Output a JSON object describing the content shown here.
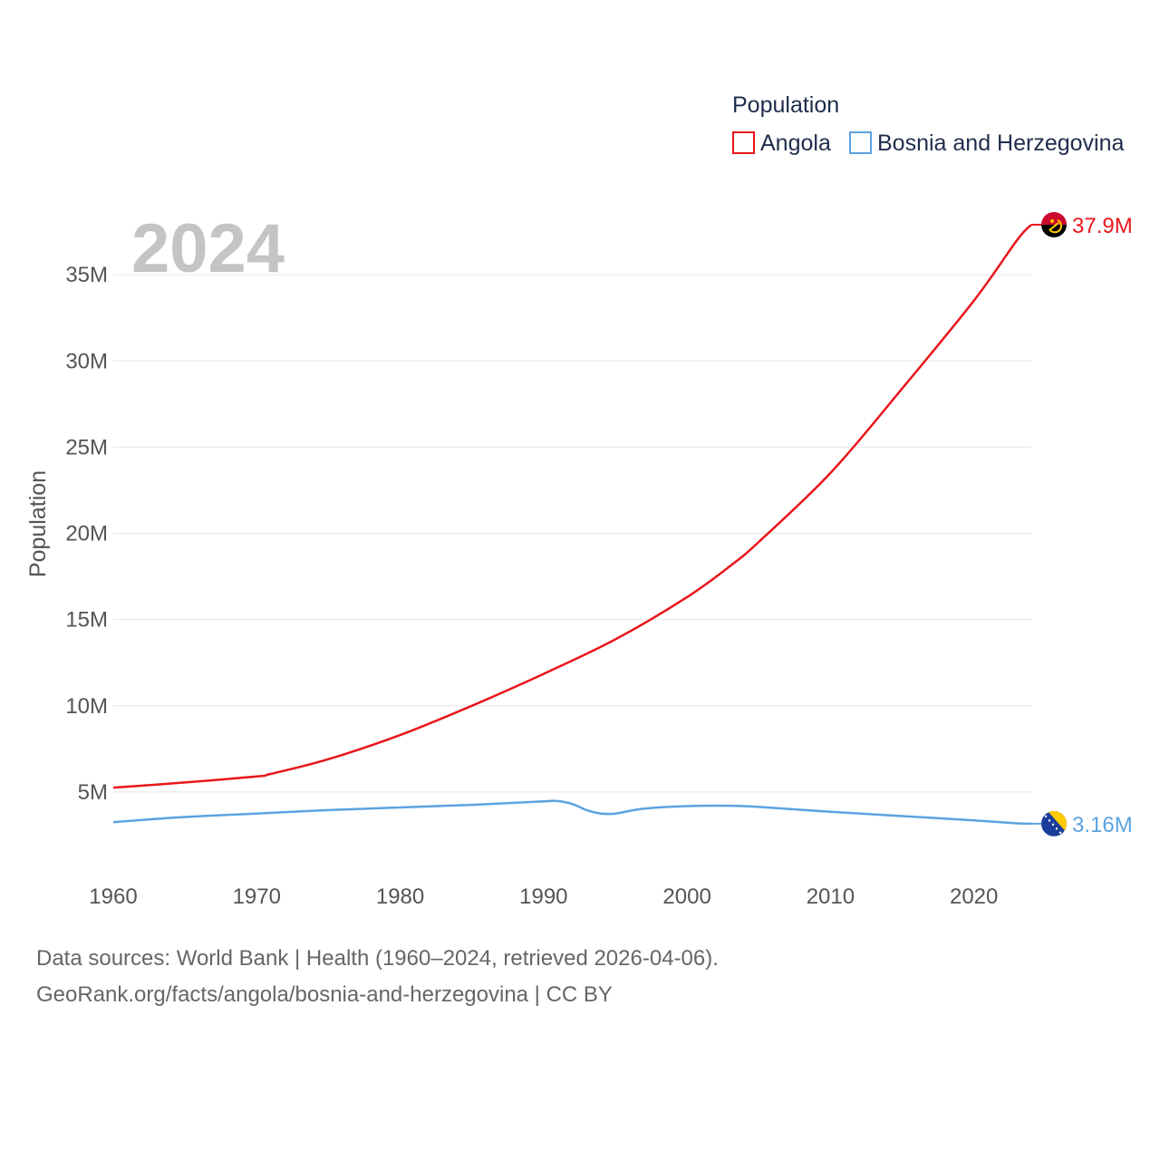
{
  "chart_data": {
    "type": "line",
    "year_label": "2024",
    "ylabel": "Population",
    "xlabel": "",
    "xlim": [
      1960,
      2024
    ],
    "ylim": [
      0,
      40000000
    ],
    "x_ticks": [
      1960,
      1970,
      1980,
      1990,
      2000,
      2010,
      2020
    ],
    "y_ticks": [
      {
        "value": 5000000,
        "label": "5M"
      },
      {
        "value": 10000000,
        "label": "10M"
      },
      {
        "value": 15000000,
        "label": "15M"
      },
      {
        "value": 20000000,
        "label": "20M"
      },
      {
        "value": 25000000,
        "label": "25M"
      },
      {
        "value": 30000000,
        "label": "30M"
      },
      {
        "value": 35000000,
        "label": "35M"
      }
    ],
    "legend": {
      "title": "Population",
      "position": "top-right"
    },
    "series": [
      {
        "name": "Angola",
        "color": "#e8161b",
        "end_label": "37.9M",
        "flag_icon": "angola-flag-icon",
        "points": [
          [
            1960,
            5250000
          ],
          [
            1965,
            5550000
          ],
          [
            1970,
            5900000
          ],
          [
            1971,
            6050000
          ],
          [
            1975,
            6900000
          ],
          [
            1980,
            8300000
          ],
          [
            1985,
            10000000
          ],
          [
            1990,
            11850000
          ],
          [
            1995,
            13850000
          ],
          [
            2000,
            16300000
          ],
          [
            2003,
            18100000
          ],
          [
            2005,
            19500000
          ],
          [
            2010,
            23500000
          ],
          [
            2015,
            28400000
          ],
          [
            2020,
            33500000
          ],
          [
            2023,
            37000000
          ],
          [
            2024,
            37900000
          ]
        ]
      },
      {
        "name": "Bosnia and Herzegovina",
        "color": "#5ba3e0",
        "end_label": "3.16M",
        "flag_icon": "bosnia-flag-icon",
        "points": [
          [
            1960,
            3250000
          ],
          [
            1965,
            3550000
          ],
          [
            1970,
            3750000
          ],
          [
            1975,
            3950000
          ],
          [
            1980,
            4100000
          ],
          [
            1985,
            4250000
          ],
          [
            1990,
            4450000
          ],
          [
            1991,
            4470000
          ],
          [
            1992,
            4300000
          ],
          [
            1993,
            3950000
          ],
          [
            1994,
            3750000
          ],
          [
            1995,
            3750000
          ],
          [
            1997,
            4030000
          ],
          [
            2000,
            4180000
          ],
          [
            2003,
            4200000
          ],
          [
            2005,
            4130000
          ],
          [
            2010,
            3850000
          ],
          [
            2015,
            3600000
          ],
          [
            2020,
            3350000
          ],
          [
            2023,
            3180000
          ],
          [
            2024,
            3160000
          ]
        ]
      }
    ]
  },
  "footer": {
    "line1": "Data sources: World Bank | Health (1960–2024, retrieved 2026-04-06).",
    "line2": "GeoRank.org/facts/angola/bosnia-and-herzegovina | CC BY"
  }
}
